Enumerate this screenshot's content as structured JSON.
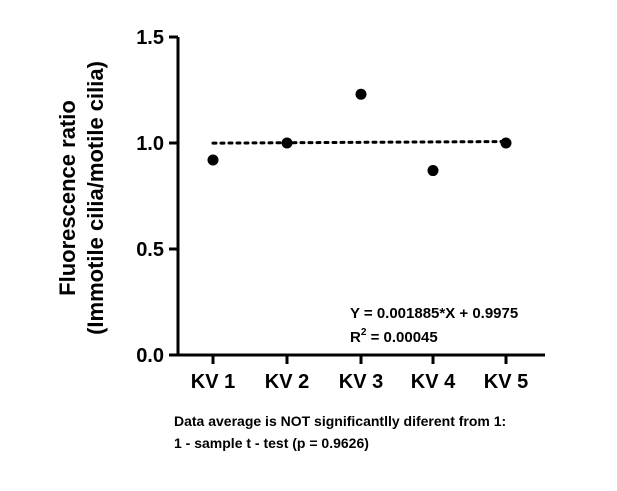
{
  "chart_data": {
    "type": "scatter",
    "categories": [
      "KV 1",
      "KV 2",
      "KV 3",
      "KV 4",
      "KV 5"
    ],
    "values": [
      0.92,
      1.0,
      1.23,
      0.87,
      1.0
    ],
    "ylabel_line1": "Fluorescence ratio",
    "ylabel_line2": "(Immotile cilia/motile cilia)",
    "ylim": [
      0.0,
      1.5
    ],
    "yticks": [
      "0.0",
      "0.5",
      "1.0",
      "1.5"
    ],
    "fit": {
      "slope": 0.001885,
      "intercept": 0.9975,
      "style": "dotted"
    },
    "equation": "Y = 0.001885*X + 0.9975",
    "r2_label": "R",
    "r2_sup": "2",
    "r2_value": " = 0.00045",
    "grid": false
  },
  "notes": {
    "line1": "Data average is NOT significantlly diferent from 1:",
    "line2": "1 - sample t - test (p = 0.9626)"
  }
}
